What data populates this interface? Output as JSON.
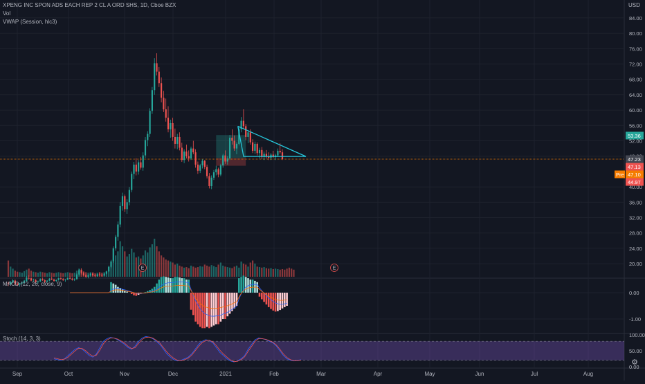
{
  "header": {
    "symbol_line": "XPENG INC SPON ADS EACH REP 2 CL A ORD SHS, 1D, Cboe BZX",
    "vol_label": "Vol",
    "vwap_label": "VWAP (Session, hlc3)",
    "currency": "USD"
  },
  "macd_label": "MACD (12, 26, close, 9)",
  "stoch_label": "Stoch (14, 3, 3)",
  "settings_icon": "gear-icon",
  "chart_data": [
    {
      "type": "candlestick",
      "title": "XPENG INC SPON ADS EACH REP 2 CL A ORD SHS, 1D, Cboe BZX",
      "ylabel": "USD",
      "ylim": [
        17,
        87
      ],
      "yticks": [
        "84.00",
        "80.00",
        "76.00",
        "72.00",
        "68.00",
        "64.00",
        "60.00",
        "56.00",
        "52.00",
        "48.00",
        "40.00",
        "36.00",
        "32.00",
        "28.00",
        "24.00",
        "20.00"
      ],
      "months": [
        "Sep",
        "Oct",
        "Nov",
        "Dec",
        "2021",
        "Feb",
        "Mar",
        "Apr",
        "May",
        "Jun",
        "Jul",
        "Aug"
      ],
      "price_labels": {
        "current": "53.36",
        "last": "47.23",
        "p1": "47.13",
        "pre_tag": "Pre",
        "pre": "47.10",
        "p2": "44.97"
      },
      "earnings_marker": "E",
      "colors": {
        "up": "#26a69a",
        "down": "#ef5350",
        "triangle": "#26c6da",
        "vwap_line": "#f57c00",
        "current_badge": "#26a69a",
        "last_badge": "#434651",
        "down_badge": "#ef5350",
        "pre_badge": "#f57c00"
      },
      "grid": true,
      "candles": [
        [
          15.0,
          15.3,
          14.2,
          14.8
        ],
        [
          14.7,
          15.5,
          14.4,
          15.2
        ],
        [
          15.1,
          16.0,
          14.9,
          15.7
        ],
        [
          15.6,
          15.9,
          14.5,
          14.7
        ],
        [
          14.8,
          15.1,
          14.2,
          14.5
        ],
        [
          14.6,
          15.0,
          14.0,
          14.9
        ],
        [
          14.9,
          15.4,
          14.6,
          15.1
        ],
        [
          15.0,
          15.8,
          14.8,
          15.6
        ],
        [
          15.5,
          16.8,
          15.3,
          16.4
        ],
        [
          16.3,
          17.0,
          15.8,
          16.2
        ],
        [
          16.2,
          16.5,
          15.4,
          15.6
        ],
        [
          15.7,
          16.1,
          15.2,
          15.9
        ],
        [
          15.8,
          16.0,
          15.0,
          15.2
        ],
        [
          15.3,
          15.6,
          14.8,
          15.4
        ],
        [
          15.4,
          16.2,
          15.2,
          16.0
        ],
        [
          16.0,
          16.4,
          15.5,
          15.7
        ],
        [
          15.7,
          16.0,
          15.0,
          15.3
        ],
        [
          15.3,
          15.8,
          15.1,
          15.6
        ],
        [
          15.6,
          16.3,
          15.4,
          16.1
        ],
        [
          16.1,
          16.6,
          15.7,
          15.9
        ],
        [
          15.9,
          16.1,
          15.3,
          15.5
        ],
        [
          15.5,
          15.9,
          15.2,
          15.8
        ],
        [
          15.8,
          16.4,
          15.6,
          16.2
        ],
        [
          16.2,
          16.5,
          15.8,
          16.0
        ],
        [
          16.0,
          16.3,
          15.5,
          15.7
        ],
        [
          15.7,
          16.0,
          15.3,
          15.9
        ],
        [
          15.9,
          16.5,
          15.7,
          16.3
        ],
        [
          16.3,
          16.7,
          15.9,
          16.1
        ],
        [
          16.1,
          16.4,
          15.6,
          15.8
        ],
        [
          15.8,
          16.2,
          15.5,
          16.0
        ],
        [
          16.0,
          17.5,
          15.8,
          17.2
        ],
        [
          17.2,
          18.6,
          16.9,
          18.3
        ],
        [
          18.3,
          18.8,
          17.2,
          17.6
        ],
        [
          17.6,
          18.0,
          16.8,
          17.0
        ],
        [
          17.0,
          17.4,
          16.3,
          16.6
        ],
        [
          16.6,
          17.2,
          16.2,
          17.0
        ],
        [
          17.0,
          17.6,
          16.7,
          17.4
        ],
        [
          17.4,
          17.8,
          16.8,
          17.0
        ],
        [
          17.0,
          17.3,
          16.5,
          16.8
        ],
        [
          16.8,
          17.4,
          16.6,
          17.2
        ],
        [
          17.2,
          17.7,
          16.9,
          17.1
        ],
        [
          17.1,
          17.4,
          16.6,
          16.9
        ],
        [
          16.9,
          17.6,
          16.8,
          17.4
        ],
        [
          17.4,
          18.2,
          17.2,
          18.0
        ],
        [
          18.0,
          19.5,
          17.8,
          19.2
        ],
        [
          19.2,
          21.0,
          18.8,
          20.6
        ],
        [
          20.6,
          24.5,
          20.2,
          24.0
        ],
        [
          24.0,
          27.5,
          23.4,
          27.0
        ],
        [
          27.0,
          31.0,
          26.0,
          30.2
        ],
        [
          30.2,
          36.0,
          29.5,
          35.0
        ],
        [
          35.0,
          38.5,
          33.8,
          37.6
        ],
        [
          37.6,
          38.0,
          33.5,
          34.2
        ],
        [
          34.2,
          36.8,
          33.0,
          36.0
        ],
        [
          36.0,
          40.0,
          35.2,
          39.2
        ],
        [
          39.2,
          44.0,
          38.6,
          43.4
        ],
        [
          43.4,
          46.5,
          42.0,
          45.8
        ],
        [
          45.8,
          47.5,
          43.0,
          44.0
        ],
        [
          44.0,
          47.0,
          43.2,
          46.4
        ],
        [
          46.4,
          47.8,
          44.5,
          45.0
        ],
        [
          45.0,
          49.0,
          44.2,
          48.2
        ],
        [
          48.2,
          53.0,
          47.5,
          52.2
        ],
        [
          52.2,
          54.5,
          50.6,
          53.8
        ],
        [
          53.8,
          60.5,
          53.0,
          59.8
        ],
        [
          59.8,
          66.0,
          59.0,
          65.2
        ],
        [
          65.2,
          73.5,
          64.0,
          72.2
        ],
        [
          72.2,
          74.8,
          69.0,
          70.0
        ],
        [
          70.0,
          71.2,
          66.0,
          67.0
        ],
        [
          67.0,
          68.5,
          62.0,
          63.2
        ],
        [
          63.2,
          65.0,
          59.5,
          60.2
        ],
        [
          60.2,
          63.0,
          57.0,
          58.0
        ],
        [
          58.0,
          61.0,
          54.2,
          55.0
        ],
        [
          55.0,
          57.5,
          52.8,
          56.6
        ],
        [
          56.6,
          58.0,
          52.0,
          53.0
        ],
        [
          53.0,
          55.2,
          50.0,
          51.2
        ],
        [
          51.2,
          53.8,
          49.8,
          53.0
        ],
        [
          53.0,
          54.2,
          49.5,
          50.2
        ],
        [
          50.2,
          51.5,
          46.5,
          47.0
        ],
        [
          47.0,
          49.8,
          46.2,
          49.2
        ],
        [
          49.2,
          51.0,
          47.4,
          48.0
        ],
        [
          48.0,
          49.5,
          46.6,
          47.4
        ],
        [
          47.4,
          50.5,
          47.0,
          50.0
        ],
        [
          50.0,
          52.0,
          48.5,
          49.0
        ],
        [
          49.0,
          49.8,
          45.0,
          45.8
        ],
        [
          45.8,
          46.6,
          43.4,
          44.2
        ],
        [
          44.2,
          46.0,
          43.6,
          45.6
        ],
        [
          45.6,
          47.2,
          44.8,
          46.8
        ],
        [
          46.8,
          47.0,
          44.6,
          45.2
        ],
        [
          45.2,
          45.8,
          42.2,
          42.8
        ],
        [
          42.8,
          43.6,
          39.6,
          40.2
        ],
        [
          40.2,
          43.0,
          39.4,
          42.4
        ],
        [
          42.4,
          44.4,
          41.8,
          43.8
        ],
        [
          43.8,
          45.5,
          43.0,
          44.6
        ],
        [
          44.6,
          45.0,
          42.5,
          43.2
        ],
        [
          43.2,
          46.0,
          42.8,
          45.6
        ],
        [
          45.6,
          48.6,
          45.0,
          48.2
        ],
        [
          48.2,
          49.5,
          46.0,
          46.6
        ],
        [
          46.6,
          48.0,
          45.8,
          47.4
        ],
        [
          47.4,
          53.5,
          47.0,
          52.8
        ],
        [
          52.8,
          55.0,
          51.0,
          52.0
        ],
        [
          52.0,
          53.4,
          49.4,
          50.0
        ],
        [
          50.0,
          51.6,
          48.5,
          51.2
        ],
        [
          51.2,
          55.8,
          50.8,
          55.0
        ],
        [
          55.0,
          58.2,
          54.2,
          57.2
        ],
        [
          57.2,
          60.2,
          55.0,
          55.8
        ],
        [
          55.8,
          56.4,
          52.2,
          53.0
        ],
        [
          53.0,
          54.8,
          51.4,
          54.2
        ],
        [
          54.2,
          55.0,
          51.0,
          51.6
        ],
        [
          51.6,
          52.4,
          48.8,
          49.4
        ],
        [
          49.4,
          51.8,
          48.6,
          51.2
        ],
        [
          51.2,
          51.6,
          48.2,
          48.8
        ],
        [
          48.8,
          50.2,
          47.4,
          49.6
        ],
        [
          49.6,
          50.4,
          47.2,
          47.8
        ],
        [
          47.8,
          49.2,
          47.0,
          48.6
        ],
        [
          48.6,
          49.6,
          47.4,
          48.0
        ],
        [
          48.0,
          49.0,
          47.0,
          47.6
        ],
        [
          47.6,
          48.8,
          47.0,
          48.4
        ],
        [
          48.4,
          49.4,
          47.6,
          47.8
        ],
        [
          47.8,
          48.6,
          47.0,
          48.2
        ],
        [
          48.2,
          50.0,
          47.8,
          49.4
        ],
        [
          49.4,
          51.4,
          48.6,
          49.0
        ],
        [
          49.0,
          49.8,
          47.0,
          47.23
        ]
      ],
      "triangle": [
        [
          "Jan 26",
          55.8
        ],
        [
          "Feb 17",
          47.2
        ],
        [
          "Jan 7",
          47.2
        ]
      ],
      "rectangles": [
        {
          "from_index": 91,
          "to_index": 104,
          "top": 53.5,
          "bottom": 47.5,
          "kind": "profit-zone"
        },
        {
          "from_index": 91,
          "to_index": 104,
          "top": 47.5,
          "bottom": 45.5,
          "kind": "stop-zone"
        }
      ]
    },
    {
      "type": "bar",
      "title": "Vol",
      "note": "volume histogram, relative heights",
      "values": [
        3.2,
        2.0,
        1.6,
        1.2,
        1.0,
        0.9,
        0.8,
        1.1,
        1.4,
        1.6,
        1.2,
        1.0,
        0.9,
        0.8,
        1.0,
        0.9,
        0.8,
        0.7,
        0.9,
        0.8,
        0.7,
        0.8,
        0.9,
        0.8,
        0.7,
        0.8,
        0.9,
        0.8,
        0.7,
        0.8,
        1.2,
        1.6,
        1.4,
        1.0,
        0.9,
        0.8,
        0.9,
        0.8,
        0.7,
        0.8,
        0.9,
        0.8,
        0.9,
        1.0,
        1.3,
        2.0,
        3.0,
        4.2,
        5.0,
        7.0,
        6.0,
        5.0,
        4.0,
        4.5,
        5.5,
        4.8,
        3.8,
        4.0,
        3.6,
        4.2,
        5.2,
        4.8,
        5.8,
        6.4,
        7.5,
        6.0,
        5.0,
        4.2,
        3.8,
        3.4,
        3.2,
        3.0,
        2.8,
        2.4,
        2.6,
        2.2,
        2.0,
        1.8,
        1.9,
        1.7,
        2.2,
        2.0,
        1.8,
        1.9,
        2.1,
        2.0,
        2.4,
        2.2,
        2.0,
        2.3,
        2.1,
        1.9,
        2.4,
        2.8,
        2.2,
        2.0,
        1.9,
        1.8,
        1.7,
        2.0,
        2.2,
        1.8,
        3.0,
        2.6,
        2.4,
        2.0,
        2.8,
        3.2,
        2.6,
        2.0,
        1.9,
        1.8,
        1.9,
        1.7,
        1.6,
        1.7,
        1.5,
        1.6,
        1.5,
        1.4,
        1.5,
        1.4,
        1.6,
        1.8,
        1.6,
        1.4
      ]
    },
    {
      "type": "bar",
      "title": "MACD (12, 26, close, 9)",
      "ylim": [
        -1.6,
        0.9
      ],
      "yticks": [
        "0.00",
        "-1.00"
      ],
      "histogram": [
        0,
        0,
        0,
        0,
        0,
        0,
        0,
        0,
        0,
        0,
        0,
        0,
        0,
        0,
        0,
        0,
        0,
        0,
        0.4,
        0.35,
        0.3,
        0.22,
        0.18,
        0.12,
        0.08,
        0.04,
        0,
        -0.05,
        -0.1,
        -0.12,
        -0.08,
        -0.04,
        0,
        0.02,
        0.06,
        0.1,
        0.15,
        0.22,
        0.35,
        0.5,
        0.6,
        0.62,
        0.6,
        0.58,
        0.55,
        0.55,
        0.6,
        0.6,
        0.58,
        0.55,
        0.55,
        0.5,
        0.5,
        -0.65,
        -0.85,
        -1.1,
        -1.2,
        -1.3,
        -1.35,
        -1.35,
        -1.3,
        -1.35,
        -1.3,
        -1.25,
        -1.2,
        -1.2,
        -1.1,
        -1.0,
        -1.0,
        -0.9,
        -0.8,
        -0.7,
        -0.6,
        -0.5,
        0.55,
        0.6,
        0.65,
        0.6,
        0.55,
        0.5,
        0.5,
        0.45,
        0.4,
        -0.15,
        -0.25,
        -0.35,
        -0.45,
        -0.55,
        -0.62,
        -0.68,
        -0.72,
        -0.7,
        -0.66,
        -0.6,
        -0.55,
        -0.5
      ],
      "colors": {
        "pos_strong": "#26a69a",
        "pos_weak": "#b2dfdb",
        "neg_strong": "#ef5350",
        "neg_weak": "#ffcdd2"
      }
    },
    {
      "type": "line",
      "title": "Stoch (14, 3, 3)",
      "ylim": [
        0,
        100
      ],
      "yticks": [
        "100.00",
        "50.00",
        "0.00"
      ],
      "band": [
        20,
        80
      ],
      "series": [
        {
          "color": "#2962ff",
          "values": [
            25,
            22,
            20,
            25,
            35,
            45,
            55,
            60,
            55,
            45,
            35,
            30,
            40,
            60,
            80,
            88,
            92,
            90,
            85,
            78,
            70,
            60,
            55,
            65,
            80,
            90,
            95,
            93,
            88,
            80,
            70,
            55,
            40,
            30,
            22,
            18,
            20,
            25,
            30,
            40,
            55,
            70,
            80,
            85,
            82,
            75,
            60,
            45,
            35,
            25,
            18,
            15,
            18,
            25,
            35,
            55,
            70,
            85,
            90,
            88,
            85,
            80,
            75,
            65,
            50,
            35,
            25,
            20,
            18,
            20,
            22
          ]
        },
        {
          "color": "#ef5350",
          "values": [
            28,
            25,
            22,
            24,
            30,
            40,
            50,
            58,
            57,
            50,
            40,
            33,
            36,
            52,
            72,
            84,
            90,
            90,
            87,
            81,
            74,
            64,
            57,
            60,
            74,
            86,
            92,
            93,
            90,
            83,
            74,
            60,
            46,
            35,
            26,
            20,
            19,
            22,
            27,
            36,
            50,
            64,
            76,
            82,
            83,
            78,
            66,
            52,
            40,
            30,
            21,
            16,
            17,
            22,
            31,
            48,
            64,
            80,
            88,
            88,
            86,
            82,
            77,
            68,
            55,
            40,
            29,
            22,
            19,
            19,
            21
          ]
        }
      ]
    }
  ]
}
